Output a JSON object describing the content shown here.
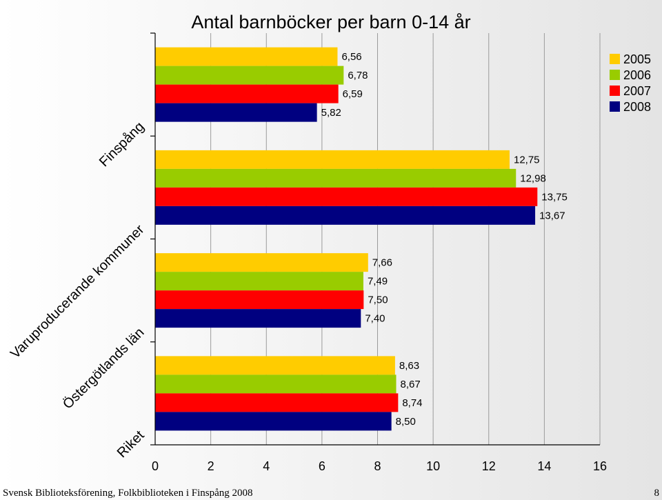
{
  "chart_data": {
    "type": "bar",
    "orientation": "horizontal",
    "title": "Antal barnböcker per barn 0-14 år",
    "categories": [
      "Finspång",
      "Varuproducerande kommuner",
      "Östergötlands län",
      "Riket"
    ],
    "series": [
      {
        "name": "2005",
        "color": "#FFCC00",
        "values": [
          6.56,
          12.75,
          7.66,
          8.63
        ],
        "labels": [
          "6,56",
          "12,75",
          "7,66",
          "8,63"
        ]
      },
      {
        "name": "2006",
        "color": "#99CC00",
        "values": [
          6.78,
          12.98,
          7.49,
          8.67
        ],
        "labels": [
          "6,78",
          "12,98",
          "7,49",
          "8,67"
        ]
      },
      {
        "name": "2007",
        "color": "#FF0000",
        "values": [
          6.59,
          13.75,
          7.5,
          8.74
        ],
        "labels": [
          "6,59",
          "13,75",
          "7,50",
          "8,74"
        ]
      },
      {
        "name": "2008",
        "color": "#000080",
        "values": [
          5.82,
          13.67,
          7.4,
          8.5
        ],
        "labels": [
          "5,82",
          "13,67",
          "7,40",
          "8,50"
        ]
      }
    ],
    "xlim": [
      0,
      16
    ],
    "xticks": [
      0,
      2,
      4,
      6,
      8,
      10,
      12,
      14,
      16
    ],
    "xtick_labels": [
      "0",
      "2",
      "4",
      "6",
      "8",
      "10",
      "12",
      "14",
      "16"
    ],
    "grid": true,
    "legend": "top-right"
  },
  "footer": {
    "source": "Svensk Biblioteksförening, Folkbiblioteken i Finspång 2008",
    "page": "8"
  }
}
